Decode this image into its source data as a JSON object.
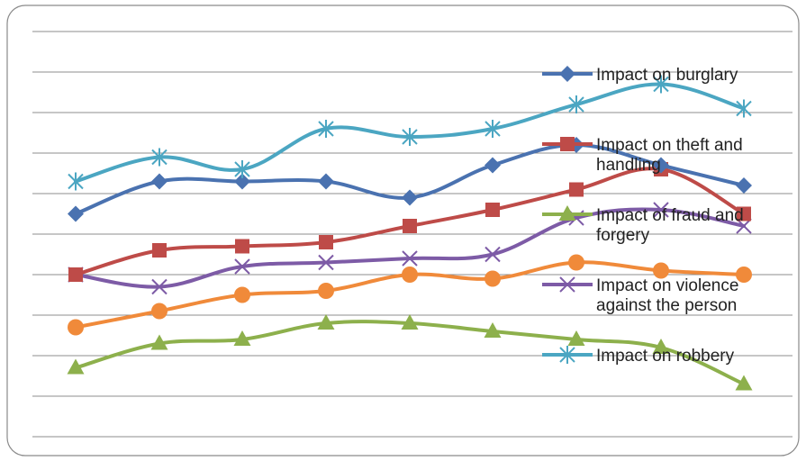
{
  "chart_data": {
    "type": "line",
    "title": "",
    "xlabel": "",
    "ylabel": "",
    "x": [
      1,
      2,
      3,
      4,
      5,
      6,
      7,
      8,
      9
    ],
    "ylim": [
      0,
      10
    ],
    "y_gridlines": [
      0,
      1,
      2,
      3,
      4,
      5,
      6,
      7,
      8,
      9,
      10
    ],
    "grid": true,
    "smooth": true,
    "legend": "right",
    "series": [
      {
        "name": "Impact on burglary",
        "legend_lines": [
          "Impact on burglary"
        ],
        "color": "#4A72B0",
        "marker": "diamond",
        "values": [
          5.5,
          6.3,
          6.3,
          6.3,
          5.9,
          6.7,
          7.2,
          6.7,
          6.2
        ]
      },
      {
        "name": "Impact on theft and handling",
        "legend_lines": [
          "Impact on theft and",
          "handling"
        ],
        "color": "#BE4B48",
        "marker": "square",
        "values": [
          4.0,
          4.6,
          4.7,
          4.8,
          5.2,
          5.6,
          6.1,
          6.6,
          5.5
        ]
      },
      {
        "name": "Impact of fraud and forgery",
        "legend_lines": [
          "Impact of fraud and",
          "forgery"
        ],
        "color": "#8DB04C",
        "marker": "triangle",
        "values": [
          1.7,
          2.3,
          2.4,
          2.8,
          2.8,
          2.6,
          2.4,
          2.2,
          1.3
        ]
      },
      {
        "name": "Impact on violence against the person",
        "legend_lines": [
          "Impact on violence",
          "against the person"
        ],
        "color": "#7D5BA6",
        "marker": "x",
        "values": [
          4.0,
          3.7,
          4.2,
          4.3,
          4.4,
          4.5,
          5.4,
          5.6,
          5.2
        ]
      },
      {
        "name": "Impact on robbery",
        "legend_lines": [
          "Impact on robbery"
        ],
        "color": "#4BA6C2",
        "marker": "star",
        "values": [
          6.3,
          6.9,
          6.6,
          7.6,
          7.4,
          7.6,
          8.2,
          8.7,
          8.1
        ]
      },
      {
        "name": "",
        "legend_lines": [],
        "color": "#F08A3A",
        "marker": "circle",
        "values": [
          2.7,
          3.1,
          3.5,
          3.6,
          4.0,
          3.9,
          4.3,
          4.1,
          4.0
        ]
      }
    ]
  }
}
